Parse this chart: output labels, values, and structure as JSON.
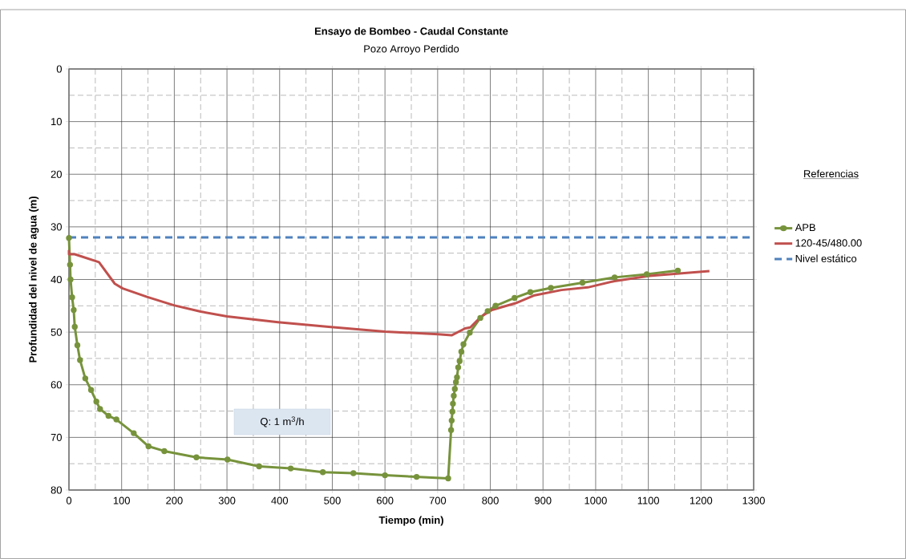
{
  "chart_data": {
    "type": "line",
    "title": "Ensayo de Bombeo - Caudal Constante",
    "subtitle": "Pozo  Arroyo Perdido",
    "xlabel": "Tiempo (min)",
    "ylabel": "Profundidad del nivel de agua (m)",
    "legend_title": "Referencias",
    "annotations": [
      "Q:  1 m$^{3}$/h"
    ],
    "series": [
      {
        "name": "APB",
        "color": "#77933c",
        "marker": "circle",
        "x": [
          0,
          2,
          3,
          6,
          9,
          11,
          16,
          21,
          31,
          42,
          52,
          59,
          75,
          90,
          123,
          151,
          181,
          242,
          301,
          361,
          421,
          482,
          540,
          600,
          660,
          720,
          725.5,
          726.6,
          728,
          729,
          730.6,
          732.6,
          734.7,
          736.7,
          739,
          741.7,
          745,
          749,
          761,
          781,
          795,
          810,
          846,
          876,
          915,
          975,
          1036,
          1097,
          1156
        ],
        "values": [
          32.1,
          37.2,
          40,
          43.4,
          45.8,
          49,
          52.5,
          55.3,
          58.8,
          61,
          63.2,
          64.6,
          65.9,
          66.6,
          69.2,
          71.7,
          72.6,
          73.8,
          74.2,
          75.5,
          75.9,
          76.6,
          76.8,
          77.2,
          77.5,
          77.8,
          68.6,
          66.8,
          65.1,
          63.6,
          62.1,
          60.8,
          59.5,
          58.6,
          56.7,
          55.5,
          53.7,
          52.3,
          50.1,
          47.3,
          46,
          45,
          43.5,
          42.4,
          41.6,
          40.6,
          39.6,
          39,
          38.3
        ]
      },
      {
        "name": "120-45/480.00",
        "color": "#c0504d",
        "x": [
          0,
          0,
          11,
          57,
          87,
          102,
          148,
          199,
          250,
          300,
          397,
          493,
          600,
          701,
          726.5,
          752,
          762,
          782,
          803,
          848,
          884,
          935,
          985,
          1036,
          1102,
          1216
        ],
        "values": [
          34.4,
          35.2,
          35.2,
          36.7,
          40.8,
          41.7,
          43.3,
          44.9,
          46.1,
          47,
          48.1,
          49,
          49.9,
          50.4,
          50.6,
          49.3,
          49.1,
          47.1,
          45.8,
          44.5,
          43,
          42,
          41.5,
          40.3,
          39.3,
          38.4
        ]
      }
    ],
    "ref_lines": [
      {
        "axis": "y",
        "value": 32,
        "label": "Nivel estático",
        "color": "#4f81bd",
        "line_style": "dashed"
      }
    ],
    "xlim": [
      0,
      1300
    ],
    "ylim": [
      80,
      0
    ],
    "xticks": [
      0,
      100,
      200,
      300,
      400,
      500,
      600,
      700,
      800,
      900,
      1000,
      1100,
      1200,
      1300
    ],
    "yticks": [
      0,
      10,
      20,
      30,
      40,
      50,
      60,
      70,
      80
    ],
    "grid": true,
    "legend": "right"
  }
}
